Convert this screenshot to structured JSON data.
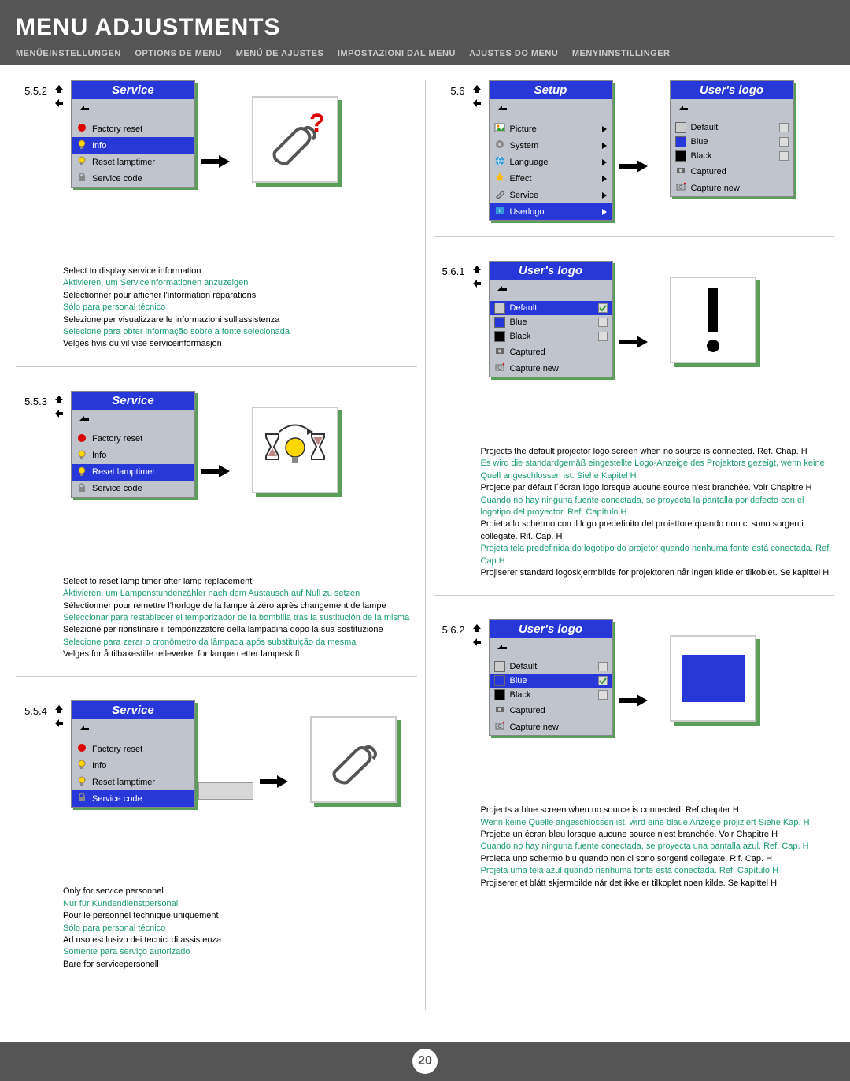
{
  "header": {
    "title": "MENU ADJUSTMENTS",
    "subtitles": [
      "MENÜEINSTELLUNGEN",
      "OPTIONS DE MENU",
      "MENÚ DE AJUSTES",
      "IMPOSTAZIONI DAL MENU",
      "AJUSTES DO MENU",
      "MENYINNSTILLINGER"
    ]
  },
  "colors": {
    "blue": "#2838d8",
    "green_shadow": "#5a9e5a",
    "text_green": "#1a9e6e",
    "menu_bg": "#c0c4cc"
  },
  "sections": {
    "s552": {
      "num": "5.5.2",
      "menu_title": "Service",
      "items": [
        {
          "label": "Factory reset",
          "icon": "red-dot"
        },
        {
          "label": "Info",
          "icon": "yellow-bulb",
          "selected": true
        },
        {
          "label": "Reset lamptimer",
          "icon": "yellow-bulb"
        },
        {
          "label": "Service code",
          "icon": "lock"
        }
      ],
      "desc": [
        {
          "text": "Select to display service information",
          "green": false
        },
        {
          "text": "Aktivieren, um Serviceinformationen anzuzeigen",
          "green": true
        },
        {
          "text": "Sélectionner pour afficher l'information réparations",
          "green": false
        },
        {
          "text": "Sólo para personal técnico",
          "green": true
        },
        {
          "text": "Selezione per visualizzare le informazioni sull'assistenza",
          "green": false
        },
        {
          "text": "Selecione para obter informação sobre a fonte selecionada",
          "green": true
        },
        {
          "text": "Velges hvis du vil vise serviceinformasjon",
          "green": false
        }
      ]
    },
    "s553": {
      "num": "5.5.3",
      "menu_title": "Service",
      "items": [
        {
          "label": "Factory reset",
          "icon": "red-dot"
        },
        {
          "label": "Info",
          "icon": "yellow-bulb"
        },
        {
          "label": "Reset lamptimer",
          "icon": "yellow-bulb",
          "selected": true
        },
        {
          "label": "Service code",
          "icon": "lock"
        }
      ],
      "desc": [
        {
          "text": "Select to reset lamp timer after lamp replacement",
          "green": false
        },
        {
          "text": "Aktivieren, um Lampenstundenzähler nach dem Austausch auf Null zu setzen",
          "green": true
        },
        {
          "text": "Sélectionner pour remettre l'horloge de la lampe à zéro après changement de lampe",
          "green": false
        },
        {
          "text": "Seleccionar para restablecer el temporizador de la bombilla tras la sustitución de la misma",
          "green": true
        },
        {
          "text": "Selezione per ripristinare il temporizzatore della lampadina dopo la sua sostituzione",
          "green": false
        },
        {
          "text": "Selecione para zerar o cronômetro da lâmpada após substituição da mesma",
          "green": true
        },
        {
          "text": "Velges for å tilbakestille telleverket for lampen etter lampeskift",
          "green": false
        }
      ]
    },
    "s554": {
      "num": "5.5.4",
      "menu_title": "Service",
      "items": [
        {
          "label": "Factory reset",
          "icon": "red-dot"
        },
        {
          "label": "Info",
          "icon": "yellow-bulb"
        },
        {
          "label": "Reset lamptimer",
          "icon": "yellow-bulb"
        },
        {
          "label": "Service code",
          "icon": "lock",
          "selected": true,
          "hasInput": true
        }
      ],
      "desc": [
        {
          "text": "Only for service personnel",
          "green": false
        },
        {
          "text": "Nur für Kundendienstpersonal",
          "green": true
        },
        {
          "text": "Pour le personnel technique uniquement",
          "green": false
        },
        {
          "text": "Sólo para personal técnico",
          "green": true
        },
        {
          "text": "Ad uso esclusivo dei tecnici di assistenza",
          "green": false
        },
        {
          "text": "Somente para serviço autorizado",
          "green": true
        },
        {
          "text": "Bare for servicepersonell",
          "green": false
        }
      ]
    },
    "s56": {
      "num": "5.6",
      "setup_title": "Setup",
      "setup_items": [
        {
          "label": "Picture",
          "icon": "picture"
        },
        {
          "label": "System",
          "icon": "system"
        },
        {
          "label": "Language",
          "icon": "globe"
        },
        {
          "label": "Effect",
          "icon": "effect"
        },
        {
          "label": "Service",
          "icon": "service"
        },
        {
          "label": "Userlogo",
          "icon": "userlogo",
          "selected": true
        }
      ],
      "userlogo_title": "User's logo",
      "userlogo_items": [
        {
          "label": "Default",
          "swatch": null,
          "check": false
        },
        {
          "label": "Blue",
          "swatch": "#2838d8",
          "check": false
        },
        {
          "label": "Black",
          "swatch": "#000",
          "check": false
        },
        {
          "label": "Captured",
          "icon": "captured"
        },
        {
          "label": "Capture new",
          "icon": "capture-new"
        }
      ]
    },
    "s561": {
      "num": "5.6.1",
      "menu_title": "User's logo",
      "items": [
        {
          "label": "Default",
          "swatch": null,
          "selected": true,
          "check": true
        },
        {
          "label": "Blue",
          "swatch": "#2838d8",
          "check": false
        },
        {
          "label": "Black",
          "swatch": "#000",
          "check": false
        },
        {
          "label": "Captured",
          "icon": "captured"
        },
        {
          "label": "Capture new",
          "icon": "capture-new"
        }
      ],
      "desc": [
        {
          "text": "Projects the default projector logo screen when no source is connected. Ref. Chap. H",
          "green": false
        },
        {
          "text": "Es wird die standardgemäß eingestellte Logo-Anzeige des Projektors gezeigt, wenn keine Quell angeschlossen ist. Siehe Kapitel H",
          "green": true
        },
        {
          "text": "Projette par défaut l´écran logo lorsque aucune source n'est branchée. Voir Chapitre H",
          "green": false
        },
        {
          "text": "Cuando no hay ninguna fuente conectada, se proyecta la pantalla por defecto con el logotipo del proyector. Ref. Capítulo H",
          "green": true
        },
        {
          "text": "Proietta lo schermo con il logo predefinito del proiettore quando non ci sono sorgenti collegate. Rif. Cap. H",
          "green": false
        },
        {
          "text": "Projeta tela predefinida do logotipo do projetor quando nenhuma fonte está conectada. Ref. Cap H",
          "green": true
        },
        {
          "text": "Projiserer standard logoskjermbilde for projektoren når ingen kilde er tilkoblet. Se kapittel H",
          "green": false
        }
      ]
    },
    "s562": {
      "num": "5.6.2",
      "menu_title": "User's logo",
      "items": [
        {
          "label": "Default",
          "swatch": null,
          "check": false
        },
        {
          "label": "Blue",
          "swatch": "#2838d8",
          "selected": true,
          "check": true
        },
        {
          "label": "Black",
          "swatch": "#000",
          "check": false
        },
        {
          "label": "Captured",
          "icon": "captured"
        },
        {
          "label": "Capture new",
          "icon": "capture-new"
        }
      ],
      "desc": [
        {
          "text": "Projects a blue screen when no source is connected. Ref chapter H",
          "green": false
        },
        {
          "text": "Wenn keine Quelle angeschlossen ist, wird eine blaue Anzeige projiziert Siehe Kap. H",
          "green": true
        },
        {
          "text": "Projette un écran bleu lorsque aucune source n'est branchée. Voir Chapitre H",
          "green": false
        },
        {
          "text": "Cuando no hay ninguna fuente conectada, se proyecta una pantalla azul. Ref. Cap. H",
          "green": true
        },
        {
          "text": "Proietta uno schermo blu quando non ci sono sorgenti collegate. Rif. Cap. H",
          "green": false
        },
        {
          "text": "Projeta uma tela azul quando nenhuma fonte está conectada. Ref. Capítulo H",
          "green": true
        },
        {
          "text": "Projiserer et blått skjermbilde når det ikke er tilkoplet noen kilde. Se kapittel H",
          "green": false
        }
      ]
    }
  },
  "page_number": "20"
}
